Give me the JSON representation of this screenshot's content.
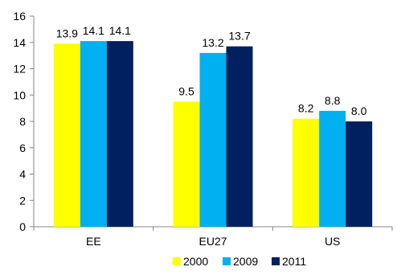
{
  "chart_data": {
    "type": "bar",
    "title": "",
    "xlabel": "",
    "ylabel": "",
    "categories": [
      "EE",
      "EU27",
      "US"
    ],
    "ylim": [
      0,
      16
    ],
    "ytick_step": 2,
    "grid": false,
    "legend_position": "bottom",
    "series": [
      {
        "name": "2000",
        "color": "#FFFF00",
        "values": [
          13.9,
          9.5,
          8.2
        ],
        "labels": [
          "13.9",
          "9.5",
          "8.2"
        ]
      },
      {
        "name": "2009",
        "color": "#00B0F0",
        "values": [
          14.1,
          13.2,
          8.8
        ],
        "labels": [
          "14.1",
          "13.2",
          "8.8"
        ]
      },
      {
        "name": "2011",
        "color": "#002060",
        "values": [
          14.1,
          13.7,
          8.0
        ],
        "labels": [
          "14.1",
          "13.7",
          "8.0"
        ]
      }
    ]
  }
}
